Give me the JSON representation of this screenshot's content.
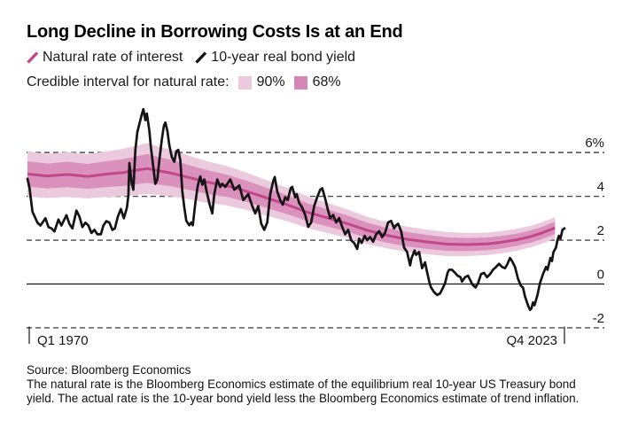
{
  "title": "Long Decline in Borrowing Costs Is at an End",
  "legend": {
    "series": [
      {
        "label": "Natural rate of interest",
        "slash_color": "#c2468c"
      },
      {
        "label": "10-year real bond yield",
        "slash_color": "#141414"
      }
    ],
    "interval_label": "Credible interval for natural rate:",
    "intervals": [
      {
        "label": "90%",
        "color": "#eccade"
      },
      {
        "label": "68%",
        "color": "#d588b6"
      }
    ]
  },
  "footer": {
    "source": "Source: Bloomberg Economics",
    "note_lines": [
      "The natural rate is the Bloomberg Economics estimate of the equilibrium real 10-year US Treasury bond",
      "yield. The actual rate is the 10-year bond yield less the Bloomberg Economics estimate of trend inflation."
    ]
  },
  "chart_data": {
    "type": "line",
    "title": "Long Decline in Borrowing Costs Is at an End",
    "x_range": [
      1970.0,
      2023.75
    ],
    "y_range": [
      -2.6,
      8.2
    ],
    "x_axis": {
      "start": {
        "label": "Q1 1970",
        "year": 1970.0
      },
      "end": {
        "label": "Q4 2023",
        "year": 2023.75
      }
    },
    "y_axis": {
      "unit": "%",
      "ticks": [
        {
          "value": 6,
          "label": "6%",
          "style": "dashed"
        },
        {
          "value": 4,
          "label": "4",
          "style": "dashed"
        },
        {
          "value": 2,
          "label": "2",
          "style": "dashed"
        },
        {
          "value": 0,
          "label": "0",
          "style": "solid"
        },
        {
          "value": -2,
          "label": "-2",
          "style": "dashed"
        }
      ]
    },
    "colors": {
      "bond_line": "#141414",
      "natural_rate_line": "#c2468c",
      "band_68": "#da92bc",
      "band_90": "#eccade",
      "gridline": "#4a4a4a",
      "axis": "#161616"
    },
    "series": [
      {
        "name": "10-year real bond yield",
        "kind": "line",
        "points": [
          [
            1970.0,
            4.8
          ],
          [
            1970.2,
            4.4
          ],
          [
            1970.5,
            3.3
          ],
          [
            1971.0,
            2.8
          ],
          [
            1971.3,
            2.67
          ],
          [
            1971.8,
            3.0
          ],
          [
            1972.1,
            2.6
          ],
          [
            1972.4,
            2.54
          ],
          [
            1972.7,
            2.4
          ],
          [
            1973.1,
            2.94
          ],
          [
            1973.4,
            2.67
          ],
          [
            1973.9,
            3.14
          ],
          [
            1974.2,
            2.74
          ],
          [
            1974.5,
            2.54
          ],
          [
            1974.9,
            3.35
          ],
          [
            1975.2,
            3.08
          ],
          [
            1975.5,
            2.6
          ],
          [
            1975.8,
            2.8
          ],
          [
            1976.1,
            2.67
          ],
          [
            1976.4,
            2.33
          ],
          [
            1976.7,
            2.47
          ],
          [
            1977.0,
            2.27
          ],
          [
            1977.35,
            2.27
          ],
          [
            1977.6,
            2.67
          ],
          [
            1977.9,
            2.87
          ],
          [
            1978.2,
            2.8
          ],
          [
            1978.5,
            2.47
          ],
          [
            1978.75,
            2.54
          ],
          [
            1979.05,
            3.08
          ],
          [
            1979.35,
            3.42
          ],
          [
            1979.65,
            3.0
          ],
          [
            1979.95,
            3.48
          ],
          [
            1980.1,
            4.02
          ],
          [
            1980.2,
            5.52
          ],
          [
            1980.45,
            4.57
          ],
          [
            1980.6,
            4.3
          ],
          [
            1980.8,
            6.12
          ],
          [
            1981.0,
            6.94
          ],
          [
            1981.3,
            7.48
          ],
          [
            1981.45,
            7.75
          ],
          [
            1981.6,
            7.98
          ],
          [
            1981.8,
            7.48
          ],
          [
            1981.95,
            7.78
          ],
          [
            1982.2,
            7.0
          ],
          [
            1982.35,
            6.26
          ],
          [
            1982.6,
            5.31
          ],
          [
            1982.8,
            4.57
          ],
          [
            1983.0,
            4.77
          ],
          [
            1983.2,
            5.65
          ],
          [
            1983.45,
            6.6
          ],
          [
            1983.65,
            7.21
          ],
          [
            1983.8,
            7.37
          ],
          [
            1984.0,
            7.0
          ],
          [
            1984.2,
            6.33
          ],
          [
            1984.45,
            5.79
          ],
          [
            1984.7,
            5.58
          ],
          [
            1984.9,
            6.06
          ],
          [
            1985.1,
            6.12
          ],
          [
            1985.3,
            5.65
          ],
          [
            1985.5,
            4.23
          ],
          [
            1985.7,
            3.49
          ],
          [
            1985.9,
            2.88
          ],
          [
            1986.2,
            2.68
          ],
          [
            1986.4,
            2.81
          ],
          [
            1986.55,
            2.68
          ],
          [
            1986.8,
            3.69
          ],
          [
            1987.05,
            4.5
          ],
          [
            1987.3,
            4.91
          ],
          [
            1987.5,
            4.53
          ],
          [
            1987.7,
            4.77
          ],
          [
            1987.9,
            4.3
          ],
          [
            1988.2,
            3.69
          ],
          [
            1988.5,
            3.22
          ],
          [
            1988.7,
            4.1
          ],
          [
            1989.0,
            4.77
          ],
          [
            1989.3,
            4.43
          ],
          [
            1989.5,
            4.57
          ],
          [
            1989.8,
            4.43
          ],
          [
            1990.3,
            4.77
          ],
          [
            1990.7,
            4.3
          ],
          [
            1991.2,
            4.5
          ],
          [
            1991.6,
            3.83
          ],
          [
            1992.1,
            4.1
          ],
          [
            1992.5,
            3.56
          ],
          [
            1992.8,
            3.22
          ],
          [
            1993.1,
            3.56
          ],
          [
            1993.4,
            2.75
          ],
          [
            1993.7,
            2.47
          ],
          [
            1994.0,
            2.81
          ],
          [
            1994.3,
            4.1
          ],
          [
            1994.6,
            4.7
          ],
          [
            1994.75,
            4.88
          ],
          [
            1995.0,
            4.23
          ],
          [
            1995.3,
            3.83
          ],
          [
            1995.55,
            3.62
          ],
          [
            1995.8,
            3.96
          ],
          [
            1996.05,
            3.83
          ],
          [
            1996.35,
            4.37
          ],
          [
            1996.5,
            4.43
          ],
          [
            1996.8,
            3.96
          ],
          [
            1996.95,
            4.1
          ],
          [
            1997.2,
            3.69
          ],
          [
            1997.5,
            3.49
          ],
          [
            1997.8,
            3.15
          ],
          [
            1998.1,
            2.61
          ],
          [
            1998.4,
            2.81
          ],
          [
            1998.7,
            3.56
          ],
          [
            1999.0,
            3.96
          ],
          [
            1999.3,
            4.3
          ],
          [
            1999.5,
            4.37
          ],
          [
            1999.8,
            3.9
          ],
          [
            2000.05,
            3.42
          ],
          [
            2000.3,
            3.01
          ],
          [
            2000.6,
            3.15
          ],
          [
            2000.9,
            2.81
          ],
          [
            2001.2,
            3.01
          ],
          [
            2001.5,
            2.61
          ],
          [
            2001.8,
            2.27
          ],
          [
            2002.1,
            2.47
          ],
          [
            2002.4,
            2.0
          ],
          [
            2002.7,
            1.87
          ],
          [
            2003.0,
            1.6
          ],
          [
            2003.2,
            2.07
          ],
          [
            2003.45,
            1.87
          ],
          [
            2003.75,
            2.2
          ],
          [
            2004.0,
            2.0
          ],
          [
            2004.3,
            2.14
          ],
          [
            2004.6,
            1.93
          ],
          [
            2004.9,
            2.27
          ],
          [
            2005.2,
            2.41
          ],
          [
            2005.5,
            2.14
          ],
          [
            2005.8,
            2.34
          ],
          [
            2006.1,
            2.81
          ],
          [
            2006.4,
            2.88
          ],
          [
            2006.7,
            2.54
          ],
          [
            2006.9,
            2.68
          ],
          [
            2007.1,
            2.75
          ],
          [
            2007.4,
            2.41
          ],
          [
            2007.7,
            1.66
          ],
          [
            2008.0,
            1.46
          ],
          [
            2008.3,
            0.85
          ],
          [
            2008.45,
            1.19
          ],
          [
            2008.75,
            1.53
          ],
          [
            2008.9,
            1.33
          ],
          [
            2009.2,
            1.46
          ],
          [
            2009.5,
            0.72
          ],
          [
            2009.8,
            0.99
          ],
          [
            2009.95,
            0.65
          ],
          [
            2010.25,
            0.04
          ],
          [
            2010.4,
            -0.16
          ],
          [
            2010.7,
            -0.37
          ],
          [
            2011.0,
            -0.5
          ],
          [
            2011.3,
            -0.43
          ],
          [
            2011.6,
            -0.16
          ],
          [
            2011.8,
            0.04
          ],
          [
            2012.05,
            0.51
          ],
          [
            2012.2,
            0.65
          ],
          [
            2012.5,
            0.65
          ],
          [
            2012.8,
            0.51
          ],
          [
            2013.05,
            0.38
          ],
          [
            2013.35,
            0.31
          ],
          [
            2013.5,
            0.11
          ],
          [
            2013.8,
            0.31
          ],
          [
            2014.1,
            0.38
          ],
          [
            2014.25,
            0.24
          ],
          [
            2014.55,
            -0.03
          ],
          [
            2014.85,
            -0.16
          ],
          [
            2015.1,
            0.04
          ],
          [
            2015.4,
            0.45
          ],
          [
            2015.7,
            0.51
          ],
          [
            2016.0,
            0.31
          ],
          [
            2016.3,
            0.45
          ],
          [
            2016.6,
            0.65
          ],
          [
            2016.9,
            0.78
          ],
          [
            2017.2,
            0.92
          ],
          [
            2017.5,
            0.78
          ],
          [
            2017.8,
            0.72
          ],
          [
            2018.05,
            0.92
          ],
          [
            2018.3,
            1.19
          ],
          [
            2018.5,
            1.05
          ],
          [
            2018.8,
            0.78
          ],
          [
            2019.1,
            0.24
          ],
          [
            2019.4,
            -0.09
          ],
          [
            2019.6,
            -0.16
          ],
          [
            2019.8,
            -0.57
          ],
          [
            2020.1,
            -0.97
          ],
          [
            2020.3,
            -1.18
          ],
          [
            2020.45,
            -1.11
          ],
          [
            2020.6,
            -0.84
          ],
          [
            2020.75,
            -0.97
          ],
          [
            2021.05,
            -0.5
          ],
          [
            2021.3,
            0.04
          ],
          [
            2021.6,
            0.45
          ],
          [
            2021.9,
            0.78
          ],
          [
            2022.05,
            0.65
          ],
          [
            2022.35,
            1.19
          ],
          [
            2022.5,
            1.05
          ],
          [
            2022.65,
            1.46
          ],
          [
            2022.9,
            1.66
          ],
          [
            2023.05,
            2.0
          ],
          [
            2023.2,
            2.2
          ],
          [
            2023.35,
            2.07
          ],
          [
            2023.55,
            2.47
          ],
          [
            2023.75,
            2.54
          ]
        ]
      },
      {
        "name": "Natural rate of interest",
        "kind": "band-line",
        "x": [
          1970,
          1972,
          1974,
          1976,
          1978,
          1979.5,
          1981,
          1982,
          1983,
          1984.5,
          1986,
          1988,
          1990,
          1992,
          1994,
          1996,
          1998,
          2000,
          2002,
          2004,
          2006,
          2008,
          2010,
          2012,
          2014,
          2016,
          2017.5,
          2019,
          2020.5,
          2021.5,
          2022.8
        ],
        "center": [
          5.02,
          4.93,
          5.0,
          4.91,
          5.02,
          5.08,
          5.2,
          5.27,
          5.18,
          5.05,
          4.88,
          4.65,
          4.48,
          4.22,
          3.92,
          3.62,
          3.28,
          3.02,
          2.76,
          2.45,
          2.22,
          2.04,
          1.92,
          1.82,
          1.8,
          1.83,
          1.91,
          2.02,
          2.18,
          2.33,
          2.56
        ],
        "hw68": [
          0.58,
          0.57,
          0.58,
          0.57,
          0.59,
          0.61,
          0.64,
          0.66,
          0.63,
          0.6,
          0.57,
          0.54,
          0.51,
          0.48,
          0.46,
          0.43,
          0.41,
          0.39,
          0.37,
          0.35,
          0.34,
          0.33,
          0.32,
          0.31,
          0.3,
          0.29,
          0.29,
          0.28,
          0.28,
          0.28,
          0.28
        ],
        "hw90": [
          1.03,
          1.01,
          1.03,
          1.01,
          1.04,
          1.08,
          1.13,
          1.16,
          1.11,
          1.06,
          1.0,
          0.95,
          0.9,
          0.85,
          0.81,
          0.76,
          0.72,
          0.69,
          0.65,
          0.62,
          0.6,
          0.58,
          0.56,
          0.55,
          0.53,
          0.51,
          0.51,
          0.5,
          0.49,
          0.49,
          0.49
        ]
      }
    ],
    "grid": {
      "dashed_values": [
        6,
        4,
        2,
        -2
      ],
      "zero_line": 0,
      "legend_position": "top"
    }
  }
}
